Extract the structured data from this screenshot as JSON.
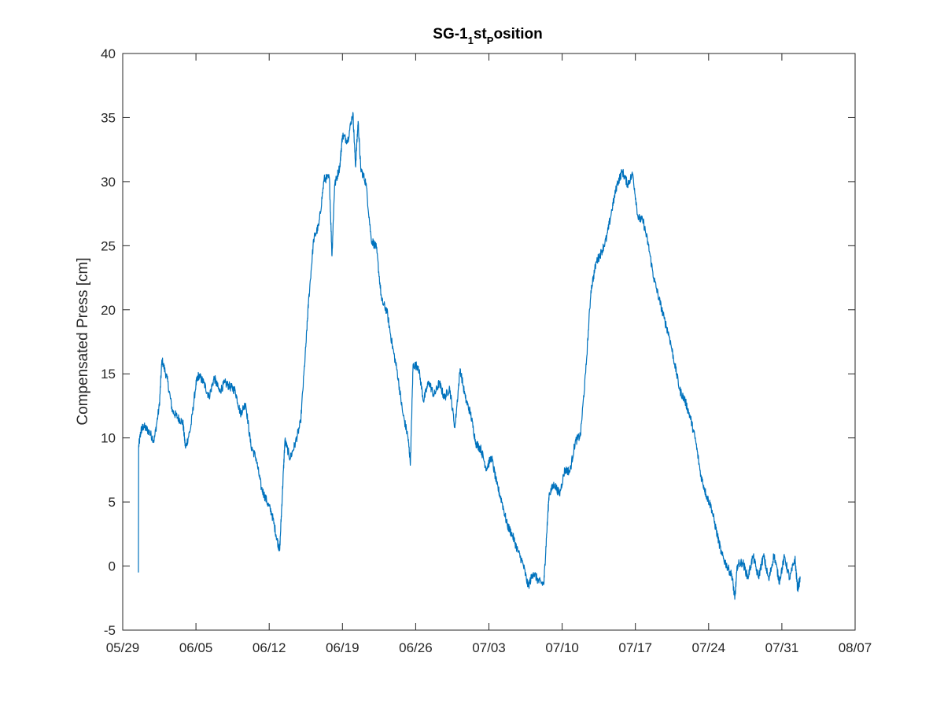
{
  "chart_data": {
    "type": "line",
    "title": {
      "main": "SG-1",
      "sub1": "1",
      "mid": "st",
      "sub2": "P",
      "tail": "osition"
    },
    "xlabel": "",
    "ylabel": "Compensated Press [cm]",
    "xlim": [
      "05/29",
      "08/07"
    ],
    "ylim": [
      -5,
      40
    ],
    "xticks": [
      "05/29",
      "06/05",
      "06/12",
      "06/19",
      "06/26",
      "07/03",
      "07/10",
      "07/17",
      "07/24",
      "07/31",
      "08/07"
    ],
    "yticks": [
      -5,
      0,
      5,
      10,
      15,
      20,
      25,
      30,
      35,
      40
    ],
    "grid": false,
    "color": "#0072BD",
    "series": [
      {
        "name": "",
        "points": [
          [
            "05/30 12:00",
            -0.5
          ],
          [
            "05/30 12:30",
            9.3
          ],
          [
            "05/30 18:00",
            10.6
          ],
          [
            "05/31 00:00",
            10.9
          ],
          [
            "05/31 12:00",
            10.5
          ],
          [
            "06/01 00:00",
            9.8
          ],
          [
            "06/01 12:00",
            12.5
          ],
          [
            "06/01 18:00",
            16.1
          ],
          [
            "06/02 06:00",
            14.6
          ],
          [
            "06/02 18:00",
            12.1
          ],
          [
            "06/03 06:00",
            11.6
          ],
          [
            "06/03 18:00",
            11.2
          ],
          [
            "06/04 00:00",
            9.2
          ],
          [
            "06/04 12:00",
            10.8
          ],
          [
            "06/05 00:00",
            14.2
          ],
          [
            "06/05 06:00",
            14.9
          ],
          [
            "06/05 18:00",
            14.3
          ],
          [
            "06/06 06:00",
            13.2
          ],
          [
            "06/06 18:00",
            14.7
          ],
          [
            "06/07 06:00",
            13.6
          ],
          [
            "06/07 18:00",
            14.3
          ],
          [
            "06/08 06:00",
            14.0
          ],
          [
            "06/08 18:00",
            13.7
          ],
          [
            "06/09 06:00",
            11.9
          ],
          [
            "06/09 18:00",
            12.7
          ],
          [
            "06/10 06:00",
            9.4
          ],
          [
            "06/10 18:00",
            8.4
          ],
          [
            "06/11 06:00",
            6.1
          ],
          [
            "06/11 18:00",
            5.1
          ],
          [
            "06/12 06:00",
            4.1
          ],
          [
            "06/12 18:00",
            2.1
          ],
          [
            "06/13 00:00",
            1.2
          ],
          [
            "06/13 06:00",
            5.5
          ],
          [
            "06/13 12:00",
            9.8
          ],
          [
            "06/14 00:00",
            8.4
          ],
          [
            "06/14 12:00",
            9.6
          ],
          [
            "06/15 00:00",
            11.2
          ],
          [
            "06/15 12:00",
            17.1
          ],
          [
            "06/15 18:00",
            20.5
          ],
          [
            "06/16 06:00",
            25.5
          ],
          [
            "06/16 18:00",
            26.6
          ],
          [
            "06/17 06:00",
            30.2
          ],
          [
            "06/17 18:00",
            30.3
          ],
          [
            "06/18 00:00",
            24.2
          ],
          [
            "06/18 06:00",
            29.7
          ],
          [
            "06/18 18:00",
            31.2
          ],
          [
            "06/19 00:00",
            33.6
          ],
          [
            "06/19 12:00",
            33.2
          ],
          [
            "06/20 00:00",
            35.4
          ],
          [
            "06/20 06:00",
            31.2
          ],
          [
            "06/20 12:00",
            34.7
          ],
          [
            "06/20 18:00",
            31.0
          ],
          [
            "06/21 06:00",
            29.9
          ],
          [
            "06/21 18:00",
            25.5
          ],
          [
            "06/22 06:00",
            24.8
          ],
          [
            "06/22 18:00",
            20.7
          ],
          [
            "06/23 06:00",
            19.9
          ],
          [
            "06/23 18:00",
            17.3
          ],
          [
            "06/24 06:00",
            15.1
          ],
          [
            "06/24 18:00",
            12.0
          ],
          [
            "06/25 06:00",
            10.1
          ],
          [
            "06/25 12:00",
            8.1
          ],
          [
            "06/25 18:00",
            15.7
          ],
          [
            "06/26 06:00",
            15.6
          ],
          [
            "06/26 18:00",
            12.9
          ],
          [
            "06/27 06:00",
            14.4
          ],
          [
            "06/27 18:00",
            13.3
          ],
          [
            "06/28 06:00",
            14.3
          ],
          [
            "06/28 18:00",
            13.1
          ],
          [
            "06/29 06:00",
            13.9
          ],
          [
            "06/29 18:00",
            10.8
          ],
          [
            "06/30 06:00",
            15.4
          ],
          [
            "06/30 18:00",
            13.1
          ],
          [
            "07/01 06:00",
            11.9
          ],
          [
            "07/01 18:00",
            9.6
          ],
          [
            "07/02 06:00",
            9.1
          ],
          [
            "07/02 18:00",
            7.6
          ],
          [
            "07/03 06:00",
            8.5
          ],
          [
            "07/03 18:00",
            6.4
          ],
          [
            "07/04 06:00",
            5.0
          ],
          [
            "07/04 18:00",
            3.2
          ],
          [
            "07/05 06:00",
            2.4
          ],
          [
            "07/05 18:00",
            1.2
          ],
          [
            "07/06 06:00",
            0.2
          ],
          [
            "07/06 18:00",
            -1.6
          ],
          [
            "07/07 06:00",
            -0.5
          ],
          [
            "07/07 18:00",
            -1.2
          ],
          [
            "07/08 06:00",
            -1.4
          ],
          [
            "07/08 12:00",
            2.2
          ],
          [
            "07/08 18:00",
            5.6
          ],
          [
            "07/09 06:00",
            6.4
          ],
          [
            "07/09 18:00",
            5.6
          ],
          [
            "07/10 06:00",
            7.5
          ],
          [
            "07/10 18:00",
            7.4
          ],
          [
            "07/11 06:00",
            9.7
          ],
          [
            "07/11 18:00",
            10.2
          ],
          [
            "07/12 06:00",
            15.1
          ],
          [
            "07/12 18:00",
            21.5
          ],
          [
            "07/13 06:00",
            23.7
          ],
          [
            "07/13 18:00",
            24.5
          ],
          [
            "07/14 06:00",
            25.6
          ],
          [
            "07/14 18:00",
            27.8
          ],
          [
            "07/15 06:00",
            29.8
          ],
          [
            "07/15 18:00",
            30.8
          ],
          [
            "07/16 06:00",
            29.8
          ],
          [
            "07/16 18:00",
            30.6
          ],
          [
            "07/17 06:00",
            27.2
          ],
          [
            "07/17 18:00",
            26.9
          ],
          [
            "07/18 06:00",
            25.0
          ],
          [
            "07/18 18:00",
            22.5
          ],
          [
            "07/19 06:00",
            20.9
          ],
          [
            "07/19 18:00",
            19.3
          ],
          [
            "07/20 06:00",
            17.9
          ],
          [
            "07/20 18:00",
            15.8
          ],
          [
            "07/21 06:00",
            13.7
          ],
          [
            "07/21 18:00",
            12.9
          ],
          [
            "07/22 06:00",
            11.6
          ],
          [
            "07/22 18:00",
            9.8
          ],
          [
            "07/23 06:00",
            7.1
          ],
          [
            "07/23 18:00",
            5.6
          ],
          [
            "07/24 06:00",
            4.6
          ],
          [
            "07/24 18:00",
            2.7
          ],
          [
            "07/25 06:00",
            0.9
          ],
          [
            "07/25 18:00",
            0.0
          ],
          [
            "07/26 06:00",
            -0.8
          ],
          [
            "07/26 12:00",
            -2.6
          ],
          [
            "07/26 18:00",
            0.1
          ],
          [
            "07/27 06:00",
            0.3
          ],
          [
            "07/27 18:00",
            -0.9
          ],
          [
            "07/28 06:00",
            0.8
          ],
          [
            "07/28 18:00",
            -0.9
          ],
          [
            "07/29 06:00",
            0.8
          ],
          [
            "07/29 18:00",
            -1.1
          ],
          [
            "07/30 06:00",
            0.9
          ],
          [
            "07/30 18:00",
            -1.2
          ],
          [
            "07/31 06:00",
            0.7
          ],
          [
            "07/31 18:00",
            -1.0
          ],
          [
            "08/01 06:00",
            0.6
          ],
          [
            "08/01 12:00",
            -1.8
          ],
          [
            "08/01 18:00",
            -1.0
          ]
        ]
      }
    ]
  }
}
